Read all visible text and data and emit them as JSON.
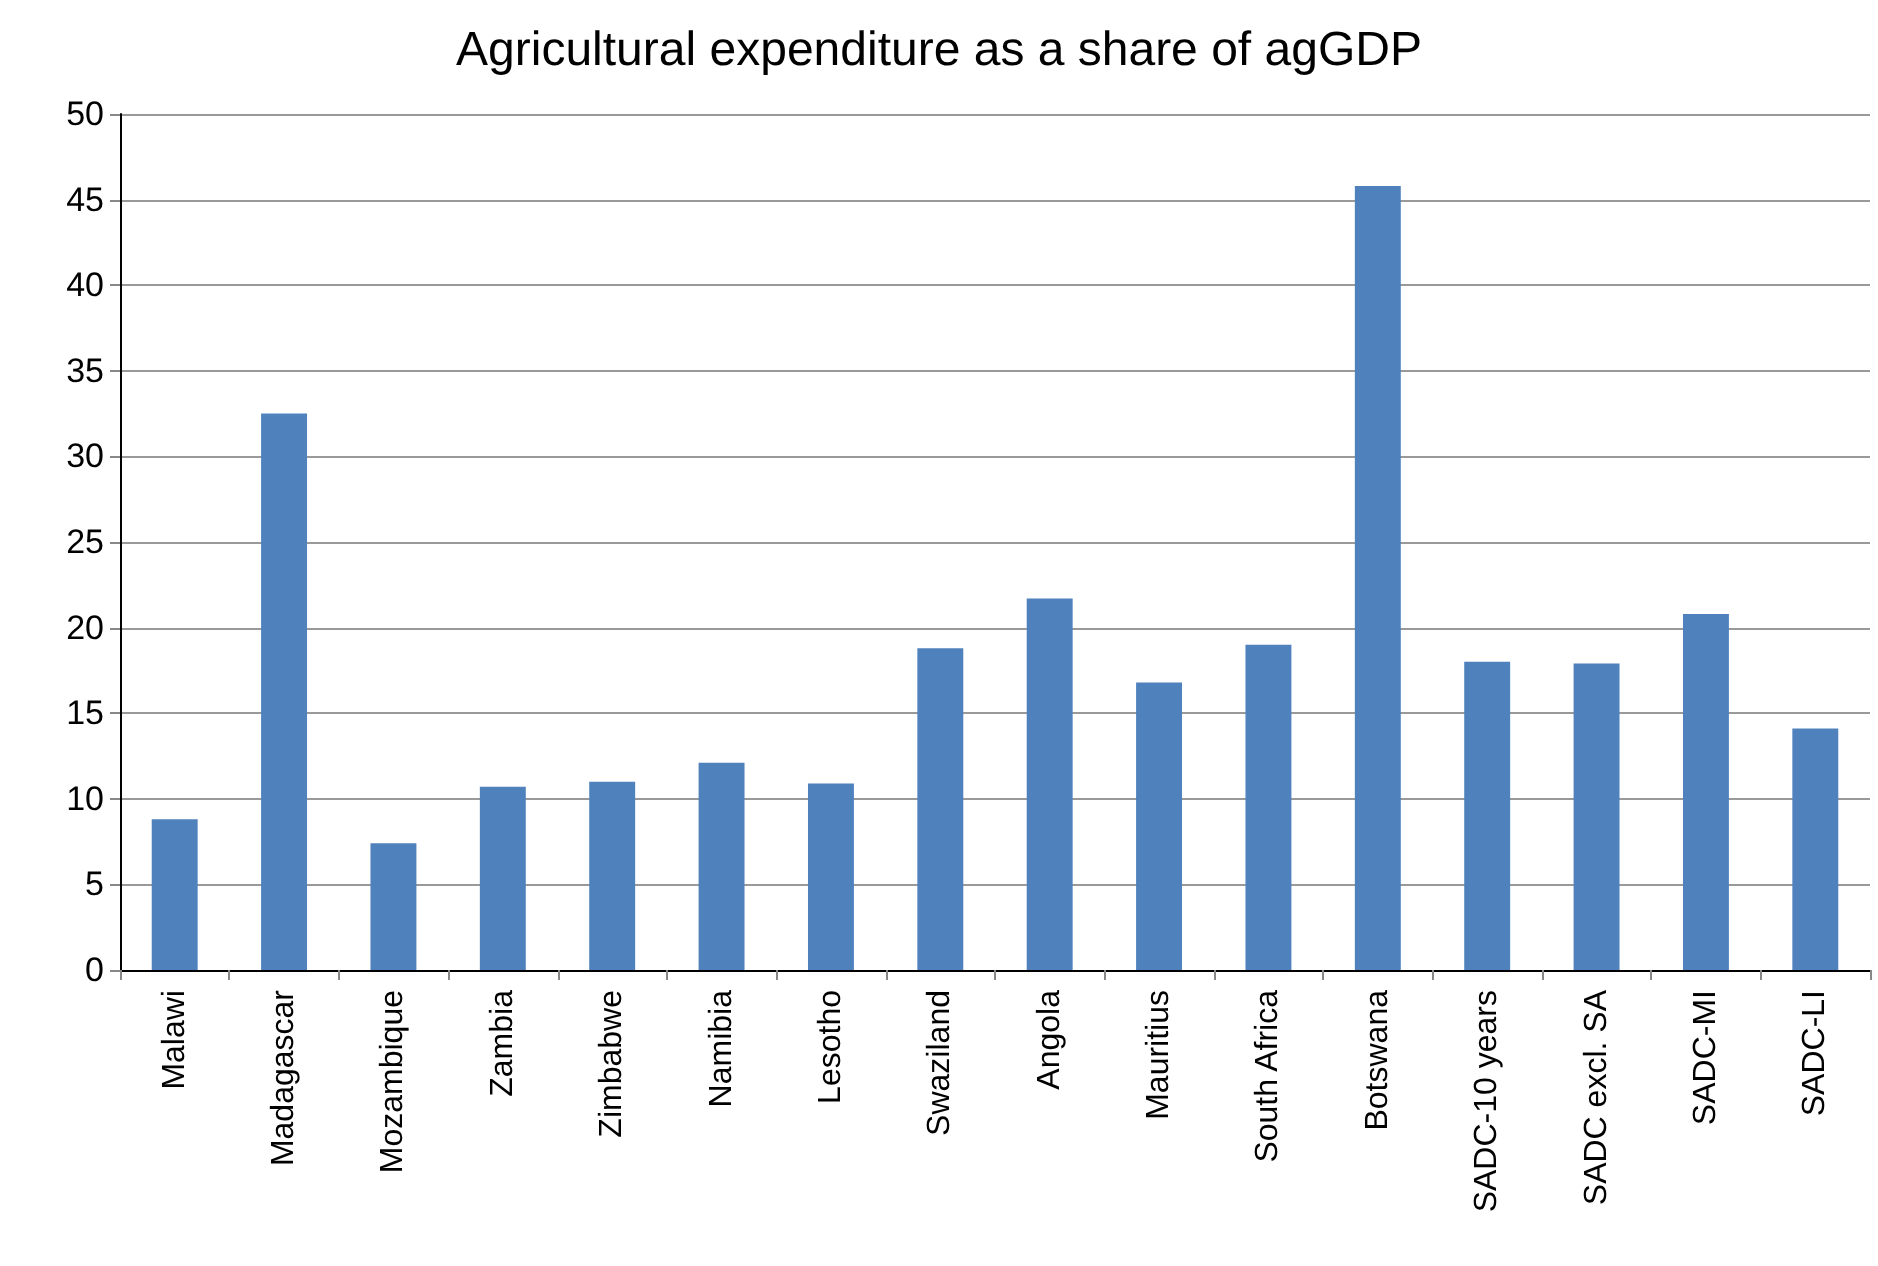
{
  "chart_data": {
    "type": "bar",
    "title": "Agricultural expenditure as a share of agGDP",
    "categories": [
      "Malawi",
      "Madagascar",
      "Mozambique",
      "Zambia",
      "Zimbabwe",
      "Namibia",
      "Lesotho",
      "Swaziland",
      "Angola",
      "Mauritius",
      "South Africa",
      "Botswana",
      "SADC-10 years",
      "SADC excl. SA",
      "SADC-MI",
      "SADC-LI"
    ],
    "values": [
      8.8,
      32.5,
      7.4,
      10.7,
      11.0,
      12.1,
      10.9,
      18.8,
      21.7,
      16.8,
      19.0,
      45.8,
      18.0,
      17.9,
      20.8,
      14.1
    ],
    "color": "#4f81bd",
    "ylim": [
      0,
      50
    ],
    "yticks": [
      0,
      5,
      10,
      15,
      20,
      25,
      30,
      35,
      40,
      45,
      50
    ],
    "grid": "y"
  }
}
